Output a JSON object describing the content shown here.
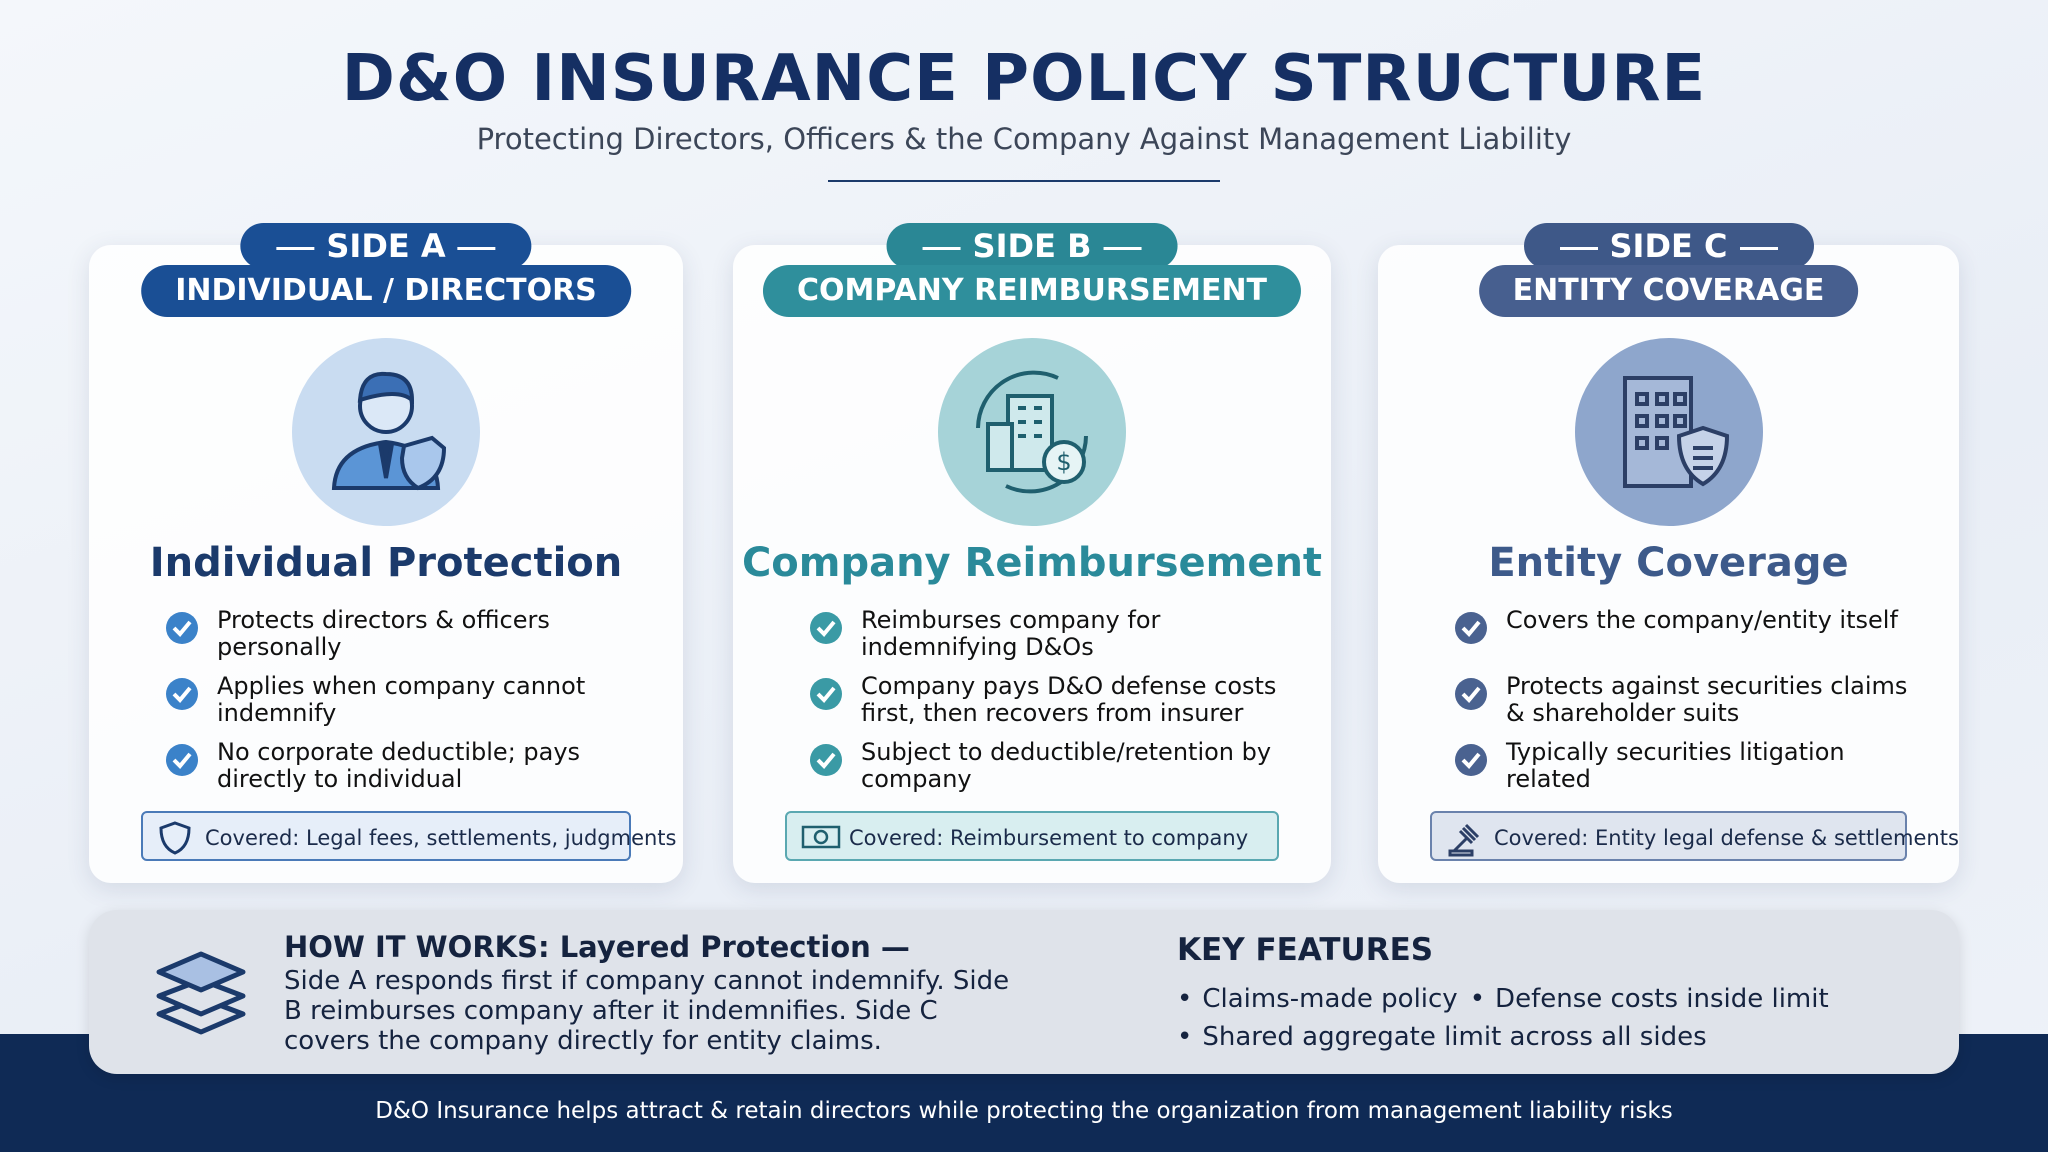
{
  "header": {
    "title": "D&O INSURANCE POLICY STRUCTURE",
    "subtitle": "Protecting Directors, Officers & the Company Against Management Liability"
  },
  "cards": [
    {
      "side": "SIDE A",
      "label": "INDIVIDUAL / DIRECTORS",
      "heading": "Individual Protection",
      "bullets": [
        "Protects directors & officers personally",
        "Applies when company cannot indemnify",
        "No corporate deductible; pays directly to individual"
      ],
      "covered": "Covered: Legal fees, settlements, judgments"
    },
    {
      "side": "SIDE B",
      "label": "COMPANY REIMBURSEMENT",
      "heading": "Company Reimbursement",
      "bullets": [
        "Reimburses company for indemnifying D&Os",
        "Company pays D&O defense costs first, then recovers from insurer",
        "Subject to deductible/retention by company"
      ],
      "covered": "Covered: Reimbursement to company"
    },
    {
      "side": "SIDE C",
      "label": "ENTITY COVERAGE",
      "heading": "Entity Coverage",
      "bullets": [
        "Covers the company/entity itself",
        "Protects against securities claims & shareholder suits",
        "Typically securities litigation related"
      ],
      "covered": "Covered: Entity legal defense & settlements"
    }
  ],
  "how_it_works": {
    "title": "HOW IT WORKS: Layered Protection —",
    "text": "Side A responds first if company cannot indemnify. Side B reimburses company after it indemnifies. Side C covers the company directly for entity claims."
  },
  "key_features": {
    "title": "KEY FEATURES",
    "items": [
      "Claims-made policy",
      "Defense costs inside limit",
      "Shared aggregate limit across all sides"
    ]
  },
  "footer": "D&O Insurance helps attract & retain directors while protecting the organization from management liability risks"
}
